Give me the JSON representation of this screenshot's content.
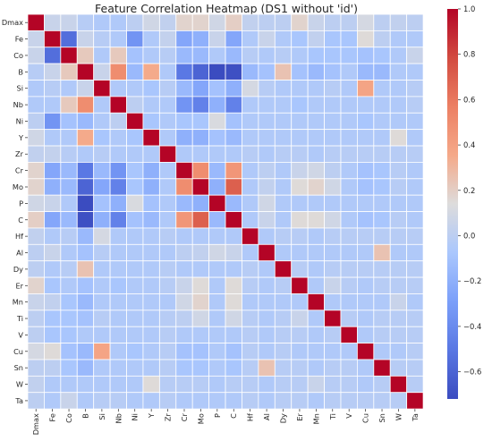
{
  "chart_data": {
    "type": "heatmap",
    "title": "Feature Correlation Heatmap (DS1 without 'id')",
    "labels": [
      "Dmax",
      "Fe",
      "Co",
      "B",
      "Si",
      "Nb",
      "Ni",
      "Y",
      "Zr",
      "Cr",
      "Mo",
      "P",
      "C",
      "Hf",
      "Al",
      "Dy",
      "Er",
      "Mn",
      "Ti",
      "V",
      "Cu",
      "Sn",
      "W",
      "Ta"
    ],
    "colorbar": {
      "min": -0.72,
      "max": 1.0,
      "ticks": [
        1.0,
        0.8,
        0.6,
        0.4,
        0.2,
        0.0,
        -0.2,
        -0.4,
        -0.6
      ],
      "tick_labels": [
        "1.0",
        "0.8",
        "0.6",
        "0.4",
        "0.2",
        "0.0",
        "−0.2",
        "−0.4",
        "−0.6"
      ],
      "colormap": "coolwarm"
    },
    "grid": true,
    "matrix": [
      [
        1,
        0.05,
        0.05,
        -0.02,
        -0.05,
        -0.05,
        0.0,
        0.08,
        0.02,
        0.18,
        0.18,
        0.08,
        0.2,
        0.02,
        0.0,
        0.0,
        0.18,
        0.05,
        0.0,
        0.0,
        0.1,
        0.0,
        0.02,
        0.0
      ],
      [
        0.05,
        1,
        -0.55,
        0.05,
        -0.02,
        -0.05,
        -0.35,
        -0.05,
        0.03,
        -0.25,
        -0.2,
        0.05,
        -0.25,
        -0.05,
        0.05,
        -0.05,
        -0.08,
        0.02,
        -0.08,
        -0.08,
        0.15,
        0.0,
        -0.05,
        -0.05
      ],
      [
        0.05,
        -0.55,
        1,
        0.22,
        -0.05,
        0.22,
        -0.1,
        -0.05,
        -0.02,
        -0.15,
        -0.15,
        -0.05,
        -0.15,
        -0.02,
        -0.05,
        -0.02,
        -0.05,
        -0.08,
        -0.08,
        -0.08,
        -0.1,
        -0.08,
        -0.05,
        0.05
      ],
      [
        -0.02,
        0.05,
        0.22,
        1,
        0.05,
        0.5,
        -0.15,
        0.35,
        -0.05,
        -0.5,
        -0.6,
        -0.72,
        -0.7,
        -0.15,
        -0.1,
        0.25,
        -0.1,
        -0.15,
        -0.1,
        -0.05,
        -0.15,
        -0.15,
        -0.05,
        -0.05
      ],
      [
        -0.05,
        -0.02,
        -0.05,
        0.05,
        1,
        -0.05,
        -0.05,
        -0.08,
        -0.02,
        -0.15,
        -0.25,
        -0.1,
        -0.2,
        0.1,
        -0.02,
        -0.05,
        -0.05,
        -0.05,
        -0.02,
        -0.05,
        0.38,
        -0.05,
        -0.05,
        -0.02
      ],
      [
        -0.05,
        -0.05,
        0.22,
        0.5,
        -0.05,
        1,
        0.0,
        -0.05,
        -0.05,
        -0.35,
        -0.45,
        -0.2,
        -0.45,
        -0.05,
        -0.05,
        -0.05,
        -0.08,
        -0.05,
        -0.05,
        -0.05,
        -0.05,
        -0.05,
        -0.05,
        -0.02
      ],
      [
        0.0,
        -0.35,
        -0.1,
        -0.15,
        -0.05,
        0.0,
        1,
        -0.08,
        -0.05,
        -0.08,
        -0.08,
        0.12,
        -0.1,
        -0.05,
        -0.05,
        -0.05,
        -0.05,
        -0.05,
        -0.05,
        -0.05,
        -0.08,
        -0.05,
        -0.05,
        -0.05
      ],
      [
        0.08,
        -0.05,
        -0.05,
        0.35,
        -0.08,
        -0.05,
        -0.08,
        1,
        -0.05,
        -0.2,
        -0.2,
        -0.1,
        -0.15,
        -0.05,
        -0.05,
        -0.05,
        -0.05,
        -0.05,
        -0.05,
        -0.05,
        -0.05,
        -0.05,
        0.15,
        -0.05
      ],
      [
        0.02,
        0.03,
        -0.02,
        -0.05,
        -0.02,
        -0.05,
        -0.05,
        -0.05,
        1,
        -0.05,
        -0.05,
        -0.05,
        -0.05,
        -0.02,
        -0.05,
        -0.02,
        -0.02,
        -0.05,
        -0.02,
        -0.02,
        -0.02,
        -0.02,
        -0.02,
        -0.02
      ],
      [
        0.18,
        -0.25,
        -0.15,
        -0.5,
        -0.15,
        -0.35,
        -0.08,
        -0.2,
        -0.05,
        1,
        0.5,
        -0.15,
        0.45,
        -0.05,
        0.0,
        -0.05,
        0.05,
        0.08,
        0.0,
        -0.05,
        -0.1,
        -0.08,
        -0.02,
        -0.05
      ],
      [
        0.18,
        -0.2,
        -0.15,
        -0.6,
        -0.25,
        -0.45,
        -0.08,
        -0.2,
        -0.05,
        0.5,
        1,
        -0.2,
        0.7,
        -0.05,
        0.02,
        -0.05,
        0.15,
        0.18,
        0.08,
        -0.05,
        -0.1,
        -0.08,
        -0.02,
        -0.05
      ],
      [
        0.08,
        0.05,
        -0.05,
        -0.72,
        -0.1,
        -0.2,
        0.12,
        -0.1,
        -0.05,
        -0.15,
        -0.2,
        1,
        -0.15,
        -0.05,
        0.08,
        -0.05,
        -0.05,
        -0.05,
        -0.05,
        -0.05,
        -0.05,
        -0.05,
        -0.05,
        -0.05
      ],
      [
        0.2,
        -0.25,
        -0.15,
        -0.7,
        -0.2,
        -0.45,
        -0.1,
        -0.15,
        -0.05,
        0.45,
        0.7,
        -0.15,
        1,
        -0.05,
        0.05,
        -0.05,
        0.15,
        0.15,
        0.08,
        -0.05,
        -0.1,
        -0.08,
        -0.02,
        -0.05
      ],
      [
        0.02,
        -0.05,
        -0.02,
        -0.15,
        0.1,
        -0.05,
        -0.05,
        -0.05,
        -0.02,
        -0.05,
        -0.05,
        -0.05,
        -0.05,
        1,
        -0.05,
        -0.02,
        -0.02,
        -0.05,
        -0.02,
        -0.02,
        -0.02,
        -0.02,
        -0.02,
        -0.02
      ],
      [
        0.0,
        0.05,
        -0.05,
        -0.1,
        -0.02,
        -0.05,
        -0.05,
        -0.05,
        -0.05,
        0.0,
        0.02,
        0.08,
        0.05,
        -0.05,
        1,
        -0.05,
        -0.05,
        -0.05,
        -0.05,
        -0.05,
        -0.05,
        0.25,
        -0.05,
        -0.05
      ],
      [
        0.0,
        -0.05,
        -0.02,
        0.25,
        -0.05,
        -0.05,
        -0.05,
        -0.05,
        -0.02,
        -0.05,
        -0.05,
        -0.05,
        -0.05,
        -0.02,
        -0.05,
        1,
        -0.02,
        -0.05,
        -0.02,
        -0.02,
        -0.02,
        -0.02,
        -0.02,
        -0.02
      ],
      [
        0.18,
        -0.08,
        -0.05,
        -0.1,
        -0.05,
        -0.08,
        -0.05,
        -0.05,
        -0.02,
        0.05,
        0.15,
        -0.05,
        0.15,
        -0.02,
        -0.05,
        -0.02,
        1,
        -0.05,
        0.05,
        -0.02,
        -0.05,
        -0.02,
        -0.02,
        -0.02
      ],
      [
        0.05,
        0.02,
        -0.08,
        -0.15,
        -0.05,
        -0.05,
        -0.05,
        -0.05,
        -0.05,
        0.08,
        0.18,
        -0.05,
        0.15,
        -0.05,
        -0.05,
        -0.05,
        -0.05,
        1,
        -0.05,
        -0.05,
        -0.05,
        -0.05,
        0.05,
        -0.05
      ],
      [
        0.0,
        -0.08,
        -0.08,
        -0.1,
        -0.02,
        -0.05,
        -0.05,
        -0.05,
        -0.02,
        0.0,
        0.08,
        -0.05,
        0.08,
        -0.02,
        -0.05,
        -0.02,
        0.05,
        -0.05,
        1,
        -0.02,
        -0.05,
        -0.02,
        -0.02,
        -0.02
      ],
      [
        0.0,
        -0.08,
        -0.08,
        -0.05,
        -0.05,
        -0.05,
        -0.05,
        -0.05,
        -0.02,
        -0.05,
        -0.05,
        -0.05,
        -0.05,
        -0.02,
        -0.05,
        -0.02,
        -0.02,
        -0.05,
        -0.02,
        1,
        -0.05,
        -0.02,
        -0.02,
        -0.02
      ],
      [
        0.1,
        0.15,
        -0.1,
        -0.15,
        0.38,
        -0.05,
        -0.08,
        -0.05,
        -0.02,
        -0.1,
        -0.1,
        -0.05,
        -0.1,
        -0.02,
        -0.05,
        -0.02,
        -0.05,
        -0.05,
        -0.05,
        -0.05,
        1,
        -0.05,
        -0.05,
        -0.02
      ],
      [
        0.0,
        0.0,
        -0.08,
        -0.15,
        -0.05,
        -0.05,
        -0.05,
        -0.05,
        -0.02,
        -0.08,
        -0.08,
        -0.05,
        -0.08,
        -0.02,
        0.25,
        -0.02,
        -0.02,
        -0.05,
        -0.02,
        -0.02,
        -0.05,
        1,
        -0.02,
        -0.02
      ],
      [
        0.02,
        -0.05,
        -0.05,
        -0.05,
        -0.05,
        -0.05,
        -0.05,
        0.15,
        -0.02,
        -0.02,
        -0.02,
        -0.05,
        -0.02,
        -0.02,
        -0.05,
        -0.02,
        -0.02,
        0.05,
        -0.02,
        -0.02,
        -0.05,
        -0.02,
        1,
        -0.02
      ],
      [
        0.0,
        -0.05,
        0.05,
        -0.05,
        -0.02,
        -0.02,
        -0.05,
        -0.05,
        -0.02,
        -0.05,
        -0.05,
        -0.05,
        -0.05,
        -0.02,
        -0.05,
        -0.02,
        -0.02,
        -0.05,
        -0.02,
        -0.02,
        -0.02,
        -0.02,
        -0.02,
        1
      ]
    ]
  }
}
